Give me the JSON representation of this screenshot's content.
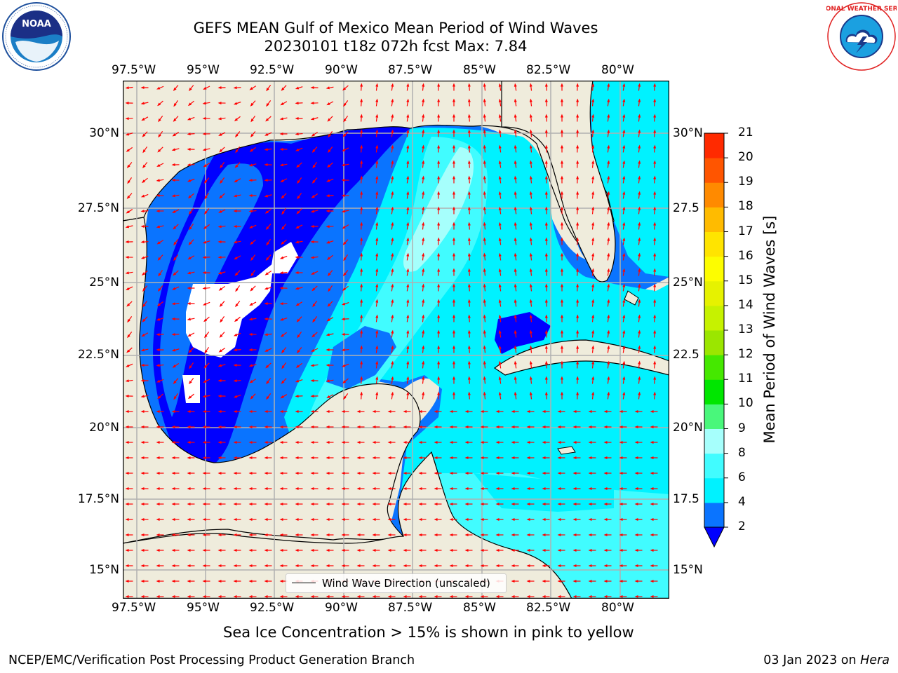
{
  "title": {
    "line1": "GEFS MEAN Gulf of Mexico Mean Period of Wind Waves",
    "line2": "20230101 t18z 072h fcst   Max: 7.84"
  },
  "map": {
    "lon_labels": [
      "97.5°W",
      "95°W",
      "92.5°W",
      "90°W",
      "87.5°W",
      "85°W",
      "82.5°W",
      "80°W"
    ],
    "lat_labels_left": [
      "30°N",
      "27.5°N",
      "25°N",
      "22.5°N",
      "20°N",
      "17.5°N",
      "15°N"
    ],
    "lat_labels_right": [
      "30°N",
      "27.5",
      "25°N",
      "22.5",
      "20°N",
      "17.5",
      "15°N"
    ],
    "land_color": "#efecdc",
    "vector_color": "#ff0000",
    "legend_label": "Wind Wave Direction (unscaled)"
  },
  "colorbar": {
    "title": "Mean Period of Wind Waves [s]",
    "tick_labels": [
      "2",
      "4",
      "6",
      "8",
      "9",
      "10",
      "11",
      "12",
      "13",
      "14",
      "15",
      "16",
      "17",
      "18",
      "19",
      "20",
      "21"
    ],
    "colors": [
      "#0a74ff",
      "#00f2ff",
      "#41fcff",
      "#a6fffc",
      "#49f77b",
      "#00e600",
      "#45e800",
      "#9be600",
      "#c6f200",
      "#e6f200",
      "#fdfd00",
      "#ffe400",
      "#ffbb00",
      "#ff8a00",
      "#ff5500",
      "#ff2a00"
    ],
    "under_color": "#0000ff"
  },
  "logos": {
    "noaa": "NOAA",
    "nws": "NATIONAL WEATHER SERVICE"
  },
  "caption": "Sea Ice Concentration > 15% is shown in pink to yellow",
  "footer": {
    "left": "NCEP/EMC/Verification Post Processing Product Generation Branch",
    "right_date": "03 Jan 2023 on ",
    "right_machine": "Hera"
  }
}
